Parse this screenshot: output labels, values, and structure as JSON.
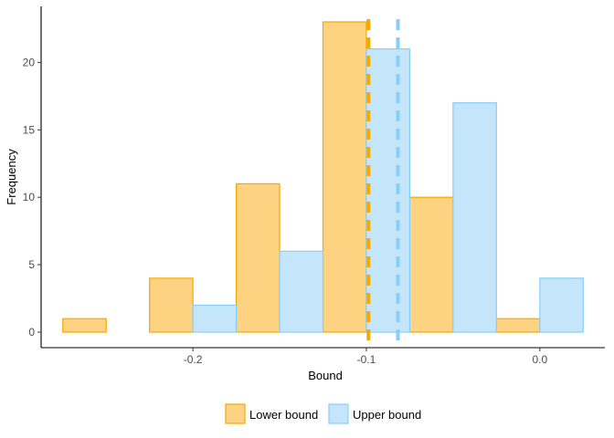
{
  "chart_data": {
    "type": "bar",
    "xlabel": "Bound",
    "ylabel": "Frequency",
    "xlim": [
      -0.2875,
      0.0375
    ],
    "ylim": [
      -1.15,
      24.15
    ],
    "x_ticks": [
      -0.2,
      -0.1,
      0.0
    ],
    "x_tick_labels": [
      "-0.2",
      "-0.1",
      "0.0"
    ],
    "y_ticks": [
      0,
      5,
      10,
      15,
      20
    ],
    "y_tick_labels": [
      "0",
      "5",
      "10",
      "15",
      "20"
    ],
    "bin_width": 0.025,
    "grid": false,
    "legend_position": "bottom",
    "series": [
      {
        "name": "Lower bound",
        "fill": "#FDD382",
        "stroke": "#F5A800",
        "bins": [
          {
            "x": -0.2625,
            "count": 1
          },
          {
            "x": -0.2125,
            "count": 4
          },
          {
            "x": -0.1625,
            "count": 11
          },
          {
            "x": -0.1125,
            "count": 23
          },
          {
            "x": -0.0625,
            "count": 10
          },
          {
            "x": -0.0125,
            "count": 1
          }
        ],
        "mean_line": -0.0988
      },
      {
        "name": "Upper bound",
        "fill": "#C5E5FA",
        "stroke": "#87CEFA",
        "bins": [
          {
            "x": -0.2375,
            "count": 0
          },
          {
            "x": -0.1875,
            "count": 2
          },
          {
            "x": -0.1375,
            "count": 6
          },
          {
            "x": -0.0875,
            "count": 21
          },
          {
            "x": -0.0375,
            "count": 17
          },
          {
            "x": 0.0125,
            "count": 4
          }
        ],
        "mean_line": -0.0818
      }
    ]
  }
}
